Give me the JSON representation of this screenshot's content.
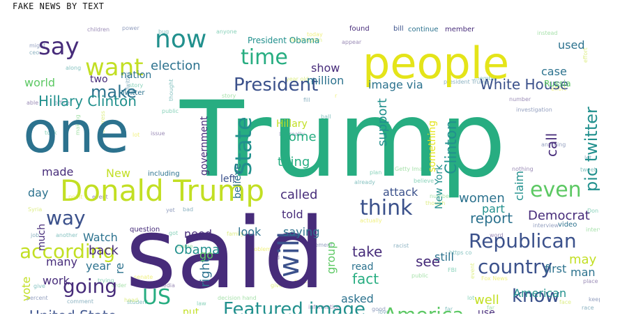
{
  "title": "FAKE NEWS BY TEXT",
  "palette": {
    "purple": "#472c7a",
    "indigo": "#3b518b",
    "teal": "#2c728e",
    "green": "#21908d",
    "emerald": "#27ad81",
    "lime": "#5cc863",
    "yellow": "#c2df23",
    "gold": "#e4e419"
  },
  "words": [
    {
      "text": "Trump",
      "color": "emerald"
    },
    {
      "text": "said",
      "color": "purple"
    },
    {
      "text": "one",
      "color": "teal"
    },
    {
      "text": "people",
      "color": "gold"
    },
    {
      "text": "Donald Trump",
      "color": "yellow"
    },
    {
      "text": "now",
      "color": "green"
    },
    {
      "text": "say",
      "color": "purple"
    },
    {
      "text": "want",
      "color": "yellow"
    },
    {
      "text": "time",
      "color": "emerald"
    },
    {
      "text": "President",
      "color": "indigo"
    },
    {
      "text": "will",
      "color": "indigo"
    },
    {
      "text": "State",
      "color": "green"
    },
    {
      "text": "think",
      "color": "indigo"
    },
    {
      "text": "even",
      "color": "lime"
    },
    {
      "text": "Republican",
      "color": "indigo"
    },
    {
      "text": "country",
      "color": "indigo"
    },
    {
      "text": "according",
      "color": "yellow"
    },
    {
      "text": "Featured image",
      "color": "green"
    },
    {
      "text": "America",
      "color": "lime"
    },
    {
      "text": "US",
      "color": "emerald"
    },
    {
      "text": "going",
      "color": "purple"
    },
    {
      "text": "know",
      "color": "indigo"
    },
    {
      "text": "way",
      "color": "indigo"
    },
    {
      "text": "make",
      "color": "teal"
    },
    {
      "text": "Hillary Clinton",
      "color": "green"
    },
    {
      "text": "White House",
      "color": "indigo"
    },
    {
      "text": "pic twitter",
      "color": "green"
    },
    {
      "text": "Clinton",
      "color": "green"
    },
    {
      "text": "election",
      "color": "teal"
    },
    {
      "text": "image via",
      "color": "teal"
    },
    {
      "text": "support",
      "color": "green"
    },
    {
      "text": "United State",
      "color": "indigo"
    },
    {
      "text": "Democrat",
      "color": "purple"
    },
    {
      "text": "report",
      "color": "teal"
    },
    {
      "text": "Obama",
      "color": "green"
    },
    {
      "text": "world",
      "color": "lime"
    },
    {
      "text": "back",
      "color": "purple"
    },
    {
      "text": "Watch",
      "color": "teal"
    },
    {
      "text": "government",
      "color": "purple"
    },
    {
      "text": "believe",
      "color": "teal"
    },
    {
      "text": "called",
      "color": "purple"
    },
    {
      "text": "thing",
      "color": "emerald"
    },
    {
      "text": "come",
      "color": "emerald"
    },
    {
      "text": "Hillary",
      "color": "yellow"
    },
    {
      "text": "fact",
      "color": "emerald"
    },
    {
      "text": "group",
      "color": "lime"
    },
    {
      "text": "take",
      "color": "purple"
    },
    {
      "text": "see",
      "color": "purple"
    },
    {
      "text": "may",
      "color": "yellow"
    },
    {
      "text": "women",
      "color": "teal"
    },
    {
      "text": "part",
      "color": "green"
    },
    {
      "text": "American",
      "color": "green"
    },
    {
      "text": "well",
      "color": "yellow"
    },
    {
      "text": "campaign",
      "color": "green"
    },
    {
      "text": "show",
      "color": "purple"
    },
    {
      "text": "million",
      "color": "teal"
    },
    {
      "text": "New York",
      "color": "green"
    },
    {
      "text": "call",
      "color": "purple"
    },
    {
      "text": "claim",
      "color": "green"
    },
    {
      "text": "case",
      "color": "teal"
    },
    {
      "text": "used",
      "color": "teal"
    },
    {
      "text": "Russia",
      "color": "lime"
    },
    {
      "text": "first",
      "color": "teal"
    },
    {
      "text": "still",
      "color": "teal"
    },
    {
      "text": "man",
      "color": "teal"
    },
    {
      "text": "right",
      "color": "teal"
    },
    {
      "text": "put",
      "color": "yellow"
    },
    {
      "text": "go",
      "color": "lime"
    },
    {
      "text": "need",
      "color": "purple"
    },
    {
      "text": "look",
      "color": "teal"
    },
    {
      "text": "told",
      "color": "purple"
    },
    {
      "text": "saying",
      "color": "teal"
    },
    {
      "text": "asked",
      "color": "teal"
    },
    {
      "text": "read",
      "color": "teal"
    },
    {
      "text": "many",
      "color": "purple"
    },
    {
      "text": "year",
      "color": "teal"
    },
    {
      "text": "work",
      "color": "purple"
    },
    {
      "text": "re",
      "color": "teal"
    },
    {
      "text": "much",
      "color": "purple"
    },
    {
      "text": "vote",
      "color": "yellow"
    },
    {
      "text": "day",
      "color": "teal"
    },
    {
      "text": "made",
      "color": "purple"
    },
    {
      "text": "New",
      "color": "yellow"
    },
    {
      "text": "left",
      "color": "indigo"
    },
    {
      "text": "attack",
      "color": "indigo"
    },
    {
      "text": "use",
      "color": "purple"
    },
    {
      "text": "two",
      "color": "purple"
    },
    {
      "text": "nation",
      "color": "teal"
    },
    {
      "text": "something",
      "color": "gold"
    },
    {
      "text": "President Obama",
      "color": "green"
    },
    {
      "text": "Twitter",
      "color": "teal"
    },
    {
      "text": "continue",
      "color": "teal"
    },
    {
      "text": "member",
      "color": "purple"
    },
    {
      "text": "found",
      "color": "purple"
    },
    {
      "text": "including",
      "color": "teal"
    },
    {
      "text": "question",
      "color": "purple"
    },
    {
      "text": "video",
      "color": "teal"
    },
    {
      "text": "bill",
      "color": "indigo"
    }
  ]
}
